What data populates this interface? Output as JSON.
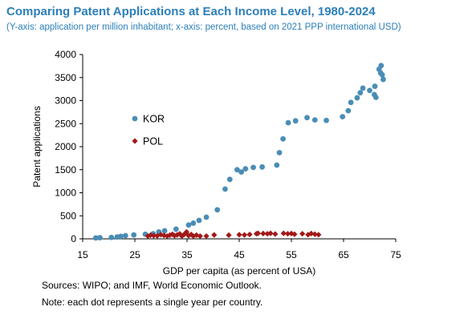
{
  "title": "Comparing Patent Applications at Each Income Level, 1980-2024",
  "subtitle": "(Y-axis: application per million inhabitant; x-axis: percent, based on 2021 PPP international USD)",
  "notes": {
    "sources": "Sources: WIPO; and IMF, World Economic Outlook.",
    "note": "Note: each dot represents a single year per country."
  },
  "chart_data": {
    "type": "scatter",
    "title": "Comparing Patent Applications at Each Income Level, 1980-2024",
    "xlabel": "GDP per capita (as percent of USA)",
    "ylabel": "Patent applications",
    "xlim": [
      15,
      75
    ],
    "ylim": [
      0,
      4000
    ],
    "xticks": [
      15,
      25,
      35,
      45,
      55,
      65,
      75
    ],
    "yticks": [
      0,
      500,
      1000,
      1500,
      2000,
      2500,
      3000,
      3500,
      4000
    ],
    "grid": false,
    "legend": "inside-left",
    "series": [
      {
        "name": "KOR",
        "marker": "circle",
        "color": "#4a8db5",
        "points": [
          [
            17.5,
            20
          ],
          [
            18.3,
            25
          ],
          [
            20.5,
            30
          ],
          [
            21.6,
            40
          ],
          [
            22.3,
            55
          ],
          [
            23.2,
            70
          ],
          [
            24.8,
            85
          ],
          [
            27.0,
            100
          ],
          [
            28.5,
            110
          ],
          [
            29.6,
            150
          ],
          [
            30.7,
            175
          ],
          [
            32.9,
            210
          ],
          [
            35.3,
            300
          ],
          [
            36.2,
            340
          ],
          [
            37.3,
            400
          ],
          [
            38.7,
            470
          ],
          [
            40.8,
            630
          ],
          [
            42.3,
            1080
          ],
          [
            43.2,
            1290
          ],
          [
            44.6,
            1500
          ],
          [
            45.4,
            1450
          ],
          [
            46.2,
            1520
          ],
          [
            47.7,
            1550
          ],
          [
            49.4,
            1560
          ],
          [
            52.2,
            1600
          ],
          [
            52.7,
            1870
          ],
          [
            53.4,
            2170
          ],
          [
            54.4,
            2520
          ],
          [
            55.8,
            2560
          ],
          [
            58.0,
            2630
          ],
          [
            59.5,
            2580
          ],
          [
            61.7,
            2570
          ],
          [
            64.8,
            2650
          ],
          [
            65.9,
            2780
          ],
          [
            66.4,
            2960
          ],
          [
            67.6,
            3060
          ],
          [
            68.2,
            3170
          ],
          [
            68.7,
            3270
          ],
          [
            70.0,
            3220
          ],
          [
            70.9,
            3130
          ],
          [
            71.0,
            3310
          ],
          [
            71.2,
            3070
          ],
          [
            71.8,
            3680
          ],
          [
            72.1,
            3600
          ],
          [
            72.2,
            3760
          ],
          [
            72.4,
            3560
          ],
          [
            72.6,
            3460
          ]
        ]
      },
      {
        "name": "POL",
        "marker": "diamond",
        "color": "#a31818",
        "points": [
          [
            27.5,
            60
          ],
          [
            28.0,
            80
          ],
          [
            28.6,
            70
          ],
          [
            29.3,
            65
          ],
          [
            30.0,
            90
          ],
          [
            30.6,
            75
          ],
          [
            31.2,
            60
          ],
          [
            31.7,
            80
          ],
          [
            32.2,
            100
          ],
          [
            32.6,
            70
          ],
          [
            33.1,
            85
          ],
          [
            33.6,
            110
          ],
          [
            34.0,
            60
          ],
          [
            34.4,
            90
          ],
          [
            34.9,
            150
          ],
          [
            35.3,
            70
          ],
          [
            35.8,
            95
          ],
          [
            36.2,
            60
          ],
          [
            36.8,
            80
          ],
          [
            37.5,
            60
          ],
          [
            38.7,
            60
          ],
          [
            40.2,
            85
          ],
          [
            43.0,
            80
          ],
          [
            45.0,
            90
          ],
          [
            46.0,
            85
          ],
          [
            47.0,
            95
          ],
          [
            48.3,
            110
          ],
          [
            48.6,
            120
          ],
          [
            49.6,
            115
          ],
          [
            50.4,
            110
          ],
          [
            51.0,
            120
          ],
          [
            51.9,
            105
          ],
          [
            53.5,
            120
          ],
          [
            54.3,
            110
          ],
          [
            55.0,
            115
          ],
          [
            55.6,
            100
          ],
          [
            57.1,
            110
          ],
          [
            58.2,
            90
          ],
          [
            58.8,
            115
          ],
          [
            59.5,
            100
          ],
          [
            60.2,
            90
          ]
        ]
      }
    ]
  }
}
